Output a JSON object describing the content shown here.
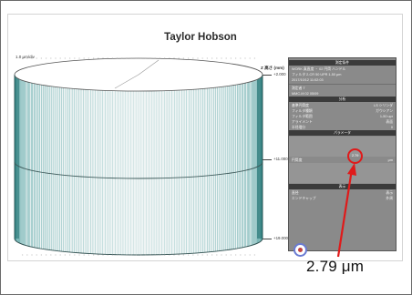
{
  "report": {
    "title": "Taylor Hobson",
    "scale_label": "1.0 µm/div",
    "axis_title": "Z 高さ (mm)",
    "axis_ticks": [
      "+2.000",
      "+11.000",
      "+19.000"
    ]
  },
  "panel": {
    "rows": [
      {
        "type": "head",
        "label": "測定条件"
      },
      {
        "type": "row",
        "label": "WORK 真直度 ・ 02 円筒 ハンドル",
        "value": ""
      },
      {
        "type": "row",
        "label": "フィルタ 2-CR 50 UPR 1-50 μm",
        "value": ""
      },
      {
        "type": "row",
        "label": "2017/10/12 11:02:03",
        "value": ""
      },
      {
        "type": "sep"
      },
      {
        "type": "row",
        "label": "測定者 T",
        "value": ""
      },
      {
        "type": "row",
        "label": "MMC-M 02 05/09",
        "value": ""
      },
      {
        "type": "head",
        "label": "分析"
      },
      {
        "type": "row",
        "label": "基準円筒度",
        "value": "LS シリンダ"
      },
      {
        "type": "row",
        "label": "フィルタ種類",
        "value": "ガウシアン"
      },
      {
        "type": "row",
        "label": "フィルタ範囲",
        "value": "1-50 upr"
      },
      {
        "type": "row",
        "label": "アライメント",
        "value": "表面"
      },
      {
        "type": "row",
        "label": "半径増分",
        "value": "0"
      },
      {
        "type": "head",
        "label": "パラメータ"
      },
      {
        "type": "blank"
      },
      {
        "type": "row",
        "label": "円筒度",
        "value": "μm"
      },
      {
        "type": "blank"
      },
      {
        "type": "head",
        "label": "表示"
      },
      {
        "type": "row",
        "label": "直径",
        "value": "表示"
      },
      {
        "type": "row",
        "label": "エンドキャップ",
        "value": "外周"
      }
    ],
    "circled_value": "2.79"
  },
  "annotation": {
    "text": "2.79 μm"
  },
  "colors": {
    "annotation_red": "#e01a1a",
    "panel_bg": "#8a8a8a",
    "panel_header": "#3b3b3b",
    "mesh": "#2f8f8f"
  }
}
